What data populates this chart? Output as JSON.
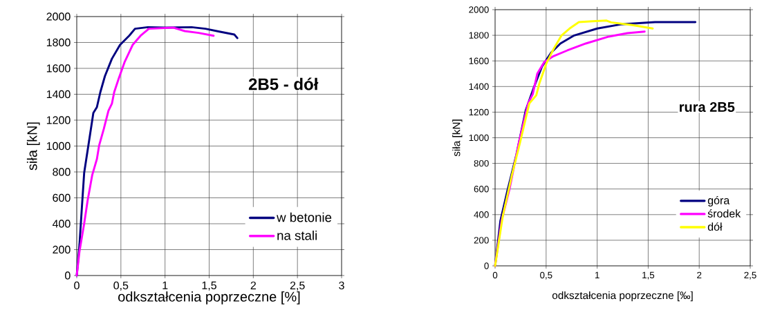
{
  "chart_data": [
    {
      "type": "line",
      "xlabel": "odkształcenia poprzeczne [%]",
      "ylabel": "siła [kN]",
      "annotations": [
        "2B5 - dół"
      ],
      "xlim": [
        0,
        3
      ],
      "ylim": [
        0,
        2000
      ],
      "xticks": [
        0,
        {
          "value": 0.5,
          "label": "0,5"
        },
        1,
        {
          "value": 1.5,
          "label": "1,5"
        },
        2,
        {
          "value": 2.5,
          "label": "2,5"
        },
        3
      ],
      "yticks": [
        0,
        200,
        400,
        600,
        800,
        1000,
        1200,
        1400,
        1600,
        1800,
        2000
      ],
      "grid": true,
      "legend": "bottom right",
      "marker": "none",
      "line_style": "solid",
      "series": [
        {
          "name": "w betonie",
          "color": "#000080",
          "x": [
            0,
            0.031,
            0.058,
            0.084,
            0.136,
            0.188,
            0.228,
            0.267,
            0.319,
            0.398,
            0.49,
            0.594,
            0.66,
            0.804,
            1.013,
            1.301,
            1.458,
            1.615,
            1.785,
            1.819
          ],
          "values": [
            0,
            240,
            525,
            793,
            1024,
            1256,
            1300,
            1416,
            1540,
            1674,
            1781,
            1852,
            1906,
            1918,
            1915,
            1918,
            1906,
            1884,
            1861,
            1834
          ]
        },
        {
          "name": "na stali",
          "color": "#ff00ff",
          "x": [
            0,
            0.031,
            0.084,
            0.123,
            0.175,
            0.228,
            0.254,
            0.306,
            0.359,
            0.398,
            0.424,
            0.476,
            0.541,
            0.633,
            0.723,
            0.817,
            1.092,
            1.223,
            1.38,
            1.55
          ],
          "values": [
            0,
            187,
            401,
            579,
            775,
            899,
            1006,
            1131,
            1273,
            1327,
            1416,
            1523,
            1647,
            1781,
            1852,
            1906,
            1915,
            1888,
            1874,
            1852
          ]
        }
      ]
    },
    {
      "type": "line",
      "xlabel": "odkształcenia poprzeczne [‰]",
      "ylabel": "siła [kN]",
      "annotations": [
        "rura 2B5"
      ],
      "xlim": [
        0,
        2.5
      ],
      "ylim": [
        0,
        2000
      ],
      "xticks": [
        0,
        {
          "value": 0.5,
          "label": "0,5"
        },
        1,
        {
          "value": 1.5,
          "label": "1,5"
        },
        2,
        {
          "value": 2.5,
          "label": "2,5"
        }
      ],
      "yticks": [
        0,
        200,
        400,
        600,
        800,
        1000,
        1200,
        1400,
        1600,
        1800,
        2000
      ],
      "grid": true,
      "legend": "bottom right",
      "marker": "none",
      "line_style": "solid",
      "series": [
        {
          "name": "góra",
          "color": "#000080",
          "x": [
            0,
            0.052,
            0.12,
            0.21,
            0.3,
            0.38,
            0.459,
            0.549,
            0.64,
            0.775,
            1.002,
            1.228,
            1.567,
            1.962
          ],
          "values": [
            0,
            351,
            584,
            872,
            1214,
            1394,
            1556,
            1664,
            1736,
            1799,
            1853,
            1885,
            1903,
            1903
          ]
        },
        {
          "name": "środek",
          "color": "#ff00ff",
          "x": [
            0,
            0.063,
            0.142,
            0.233,
            0.323,
            0.369,
            0.414,
            0.482,
            0.572,
            0.708,
            0.889,
            1.115,
            1.296,
            1.465
          ],
          "values": [
            0,
            351,
            603,
            962,
            1268,
            1340,
            1502,
            1592,
            1637,
            1682,
            1736,
            1790,
            1817,
            1829
          ]
        },
        {
          "name": "dół",
          "color": "#ffff00",
          "x": [
            0,
            0.075,
            0.165,
            0.244,
            0.335,
            0.403,
            0.436,
            0.504,
            0.572,
            0.651,
            0.73,
            0.821,
            0.956,
            1.092,
            1.137,
            1.341,
            1.544
          ],
          "values": [
            0,
            387,
            710,
            962,
            1268,
            1331,
            1430,
            1583,
            1691,
            1799,
            1853,
            1903,
            1910,
            1915,
            1901,
            1880,
            1853
          ]
        }
      ]
    }
  ]
}
